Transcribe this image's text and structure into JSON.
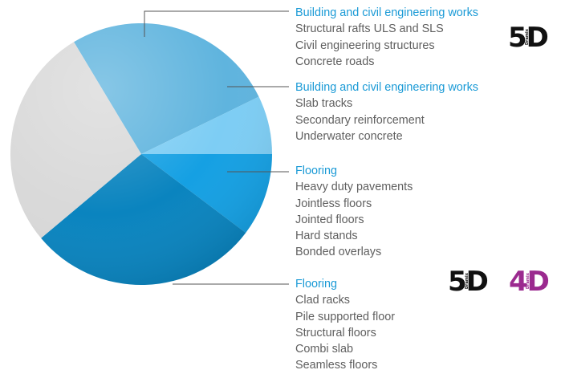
{
  "colors": {
    "accent": "#1a9ad6",
    "text_gray": "#5f5f5f",
    "badge_black": "#111111",
    "badge_purple": "#9b2a8f",
    "slice_gray": "#d9d9d9",
    "slice_light_blue_1": "#5fb4de",
    "slice_light_blue_2": "#7dcdf4",
    "slice_mid_blue": "#15a0e3",
    "slice_dark_blue": "#0a84bf"
  },
  "pie": {
    "slices": [
      {
        "name": "building-works-1",
        "color": "#5fb4de"
      },
      {
        "name": "building-works-2",
        "color": "#7dcdf4"
      },
      {
        "name": "flooring-1",
        "color": "#15a0e3"
      },
      {
        "name": "flooring-2",
        "color": "#0a84bf"
      },
      {
        "name": "other",
        "color": "#d9d9d9"
      }
    ]
  },
  "groups": [
    {
      "heading": "Building and civil engineering works",
      "items": [
        "Structural rafts ULS and SLS",
        "Civil engineering structures",
        "Concrete roads"
      ]
    },
    {
      "heading": "Building and civil engineering works",
      "items": [
        "Slab tracks",
        "Secondary reinforcement",
        "Underwater concrete"
      ]
    },
    {
      "heading": "Flooring",
      "items": [
        "Heavy duty pavements",
        "Jointless floors",
        "Jointed floors",
        "Hard stands",
        "Bonded overlays"
      ]
    },
    {
      "heading": "Flooring",
      "items": [
        "Clad racks",
        "Pile supported floor",
        "Structural floors",
        "Combi slab",
        "Seamless floors"
      ]
    }
  ],
  "badges": [
    {
      "text": "5D",
      "sup": "Dramix",
      "color": "#111111"
    },
    {
      "text": "5D",
      "sup": "Dramix",
      "color": "#111111"
    },
    {
      "text": "4D",
      "sup": "Dramix",
      "color": "#9b2a8f"
    }
  ]
}
